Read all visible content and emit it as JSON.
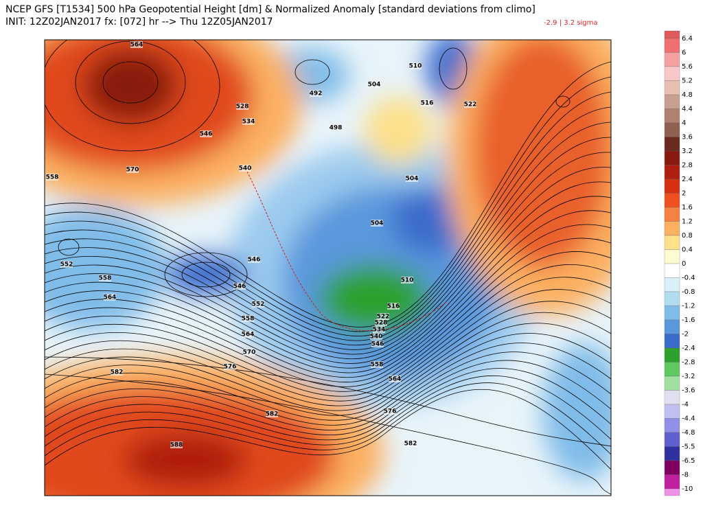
{
  "header": {
    "title": "NCEP GFS [T1534] 500 hPa Geopotential Height [dm] & Normalized Anomaly [standard deviations from climo]",
    "subtitle": "INIT: 12Z02JAN2017 fx: [072] hr --> Thu 12Z05JAN2017",
    "sigma_range": "-2.9 | 3.2 sigma"
  },
  "colorbar": {
    "labels": [
      6.4,
      6,
      5.6,
      5.2,
      4.8,
      4.4,
      4,
      3.6,
      3.2,
      2.8,
      2.4,
      2,
      1.6,
      1.2,
      0.8,
      0.4,
      0,
      -0.4,
      -0.8,
      -1.2,
      -1.6,
      -2,
      -2.4,
      -2.8,
      -3.2,
      -3.6,
      -4,
      -4.4,
      -4.8,
      -5.5,
      -6.5,
      -8,
      -10
    ],
    "colors": [
      "#e05a5a",
      "#f07070",
      "#f4a0a0",
      "#f8c8c8",
      "#e8c0b0",
      "#c8a090",
      "#b08070",
      "#906050",
      "#6a2a20",
      "#8a1a10",
      "#b01e10",
      "#d83010",
      "#f05020",
      "#f88040",
      "#fcb060",
      "#fde08a",
      "#fffbd0",
      "#ffffff",
      "#d8f0f8",
      "#b0dcf0",
      "#80bce8",
      "#5a98dc",
      "#3a6ccc",
      "#2ea02e",
      "#60c860",
      "#a0e0a0",
      "#e0e0f0",
      "#c0c0f0",
      "#9090e8",
      "#6060d0",
      "#3030a0",
      "#800060",
      "#c020a0",
      "#f090e8"
    ]
  },
  "map": {
    "contour_labels": [
      564,
      528,
      534,
      546,
      540,
      570,
      558,
      552,
      558,
      564,
      546,
      546,
      552,
      558,
      564,
      570,
      576,
      582,
      582,
      588,
      582,
      576,
      564,
      558,
      546,
      540,
      534,
      528,
      522,
      516,
      510,
      504,
      504,
      510,
      504,
      498,
      492,
      516,
      522
    ]
  }
}
